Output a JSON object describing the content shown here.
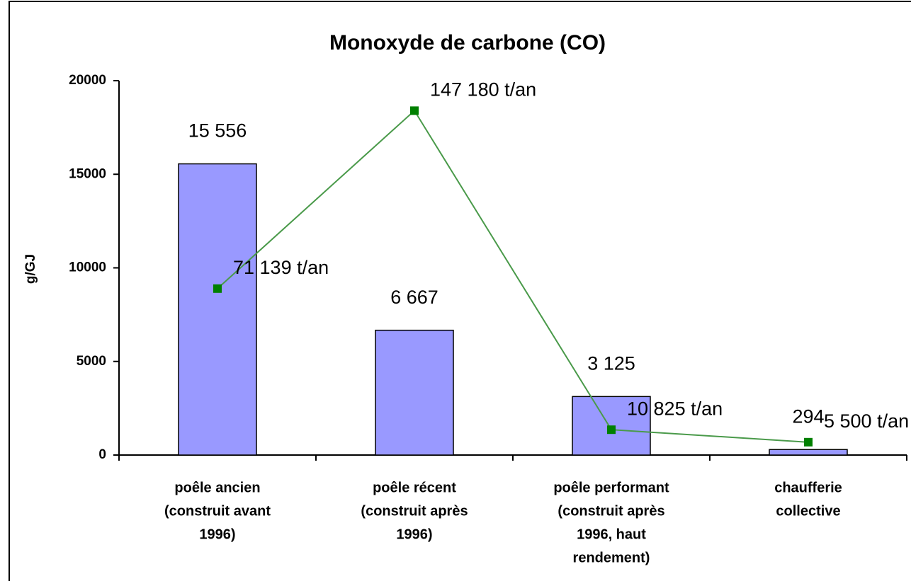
{
  "chart_data": {
    "type": "bar",
    "title": "Monoxyde de carbone (CO)",
    "ylabel": "g/GJ",
    "categories": [
      [
        "poêle ancien",
        "(construit avant",
        "1996)"
      ],
      [
        "poêle récent",
        "(construit après",
        "1996)"
      ],
      [
        "poêle performant",
        "(construit après",
        "1996, haut",
        "rendement)"
      ],
      [
        "chaufferie",
        "collective"
      ]
    ],
    "ylim": [
      0,
      20000
    ],
    "yticks": [
      0,
      5000,
      10000,
      15000,
      20000
    ],
    "y2lim": [
      0,
      160000
    ],
    "series": [
      {
        "type": "bar",
        "color": "#9999ff",
        "values": [
          15556,
          6667,
          3125,
          294
        ],
        "value_labels": [
          "15 556",
          "6 667",
          "3 125",
          "294"
        ]
      },
      {
        "type": "line",
        "axis": "y2",
        "color": "#008000",
        "values": [
          71139,
          147180,
          10825,
          5500
        ],
        "value_labels": [
          "71 139 t/an",
          "147 180 t/an",
          "10 825 t/an",
          "5 500 t/an"
        ]
      }
    ]
  }
}
